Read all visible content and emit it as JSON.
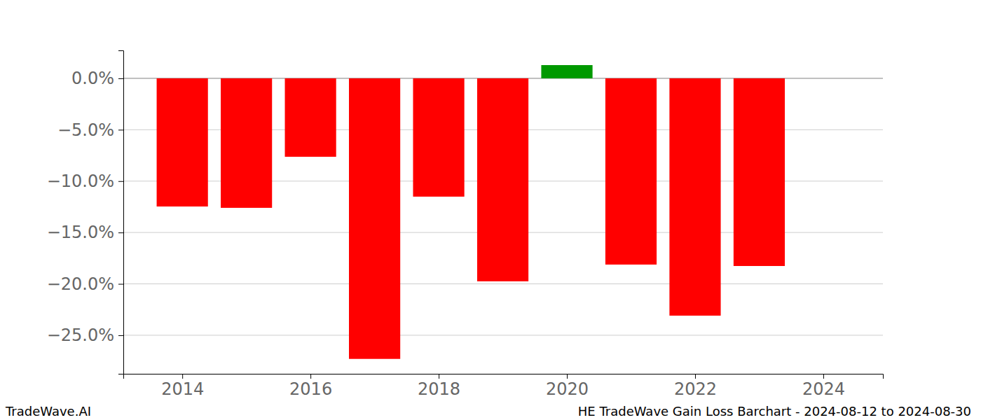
{
  "chart_data": {
    "type": "bar",
    "annotations": [
      "TradeWave.AI",
      "HE TradeWave Gain Loss Barchart - 2024-08-12 to 2024-08-30"
    ],
    "x": [
      2014,
      2015,
      2016,
      2017,
      2018,
      2019,
      2020,
      2021,
      2022,
      2023
    ],
    "values": [
      -12.47,
      -12.6,
      -7.63,
      -27.3,
      -11.51,
      -19.75,
      1.29,
      -18.12,
      -23.09,
      -18.26
    ],
    "colors": [
      "#ff0000",
      "#ff0000",
      "#ff0000",
      "#ff0000",
      "#ff0000",
      "#ff0000",
      "#009900",
      "#ff0000",
      "#ff0000",
      "#ff0000"
    ],
    "xlim": [
      2013.08,
      2024.93
    ],
    "xticks": [
      2014,
      2016,
      2018,
      2020,
      2022,
      2024
    ],
    "ylim": [
      -28.75,
      2.72
    ],
    "yticks": [
      {
        "value": -25,
        "label": "−25.0%"
      },
      {
        "value": -20,
        "label": "−20.0%"
      },
      {
        "value": -15,
        "label": "−15.0%"
      },
      {
        "value": -10,
        "label": "−10.0%"
      },
      {
        "value": -5,
        "label": "−5.0%"
      },
      {
        "value": 0,
        "label": "0.0%"
      }
    ],
    "grid": true
  }
}
